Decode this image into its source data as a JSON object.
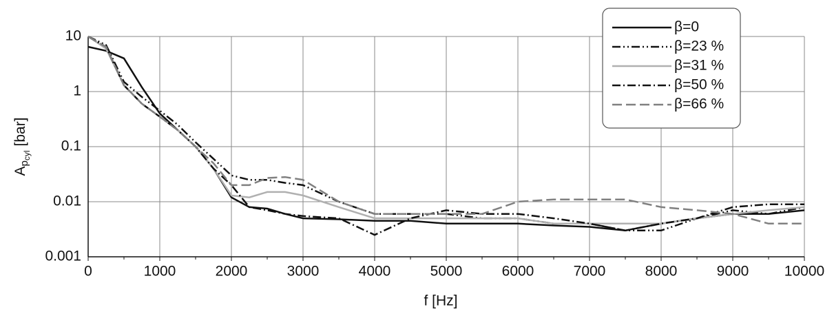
{
  "chart_data": {
    "type": "line",
    "x_label": "f [Hz]",
    "y_label": "A",
    "y_label_sub": "p",
    "y_label_subsub": "cyl",
    "y_label_unit": "[bar]",
    "y_scale": "log",
    "grid": true,
    "legend_position": "upper right",
    "xlim": [
      0,
      10000
    ],
    "xticks": [
      0,
      1000,
      2000,
      3000,
      4000,
      5000,
      6000,
      7000,
      8000,
      9000,
      10000
    ],
    "x_minor_ticks": [
      500,
      1500,
      2500,
      3500,
      4500,
      5500,
      6500,
      7500,
      8500,
      9500
    ],
    "ylim": [
      0.001,
      10
    ],
    "yticks": [
      0.001,
      0.01,
      0.1,
      1,
      10
    ],
    "x": [
      0,
      250,
      500,
      750,
      1000,
      1250,
      1500,
      1750,
      2000,
      2250,
      2500,
      2750,
      3000,
      3500,
      4000,
      4500,
      5000,
      5500,
      6000,
      6500,
      7000,
      7500,
      8000,
      8500,
      9000,
      9500,
      10000
    ],
    "series": [
      {
        "name": "β=0",
        "color": "#111111",
        "dash": "solid",
        "values": [
          6.5,
          5.5,
          4,
          1.2,
          0.4,
          0.2,
          0.1,
          0.04,
          0.012,
          0.008,
          0.0075,
          0.006,
          0.005,
          0.0048,
          0.0045,
          0.0045,
          0.004,
          0.004,
          0.004,
          0.0037,
          0.0035,
          0.003,
          0.004,
          0.005,
          0.006,
          0.006,
          0.007
        ]
      },
      {
        "name": "β=23 %",
        "color": "#111111",
        "dash": "dash-dot-dot",
        "values": [
          10,
          7,
          1.5,
          0.8,
          0.45,
          0.25,
          0.12,
          0.06,
          0.03,
          0.025,
          0.025,
          0.022,
          0.02,
          0.01,
          0.006,
          0.006,
          0.006,
          0.005,
          0.005,
          0.004,
          0.004,
          0.003,
          0.003,
          0.005,
          0.007,
          0.006,
          0.008
        ]
      },
      {
        "name": "β=31 %",
        "color": "#b0b0b0",
        "dash": "solid",
        "values": [
          10,
          6,
          1.3,
          0.6,
          0.35,
          0.2,
          0.1,
          0.04,
          0.013,
          0.012,
          0.015,
          0.015,
          0.013,
          0.008,
          0.005,
          0.005,
          0.005,
          0.005,
          0.005,
          0.004,
          0.004,
          0.004,
          0.004,
          0.005,
          0.006,
          0.007,
          0.008
        ]
      },
      {
        "name": "β=50 %",
        "color": "#111111",
        "dash": "dash-dot",
        "values": [
          10,
          6.5,
          1.3,
          0.6,
          0.35,
          0.2,
          0.1,
          0.04,
          0.02,
          0.008,
          0.007,
          0.006,
          0.0055,
          0.005,
          0.0025,
          0.005,
          0.007,
          0.006,
          0.006,
          0.005,
          0.004,
          0.003,
          0.004,
          0.005,
          0.008,
          0.009,
          0.009
        ]
      },
      {
        "name": "β=66 %",
        "color": "#808080",
        "dash": "dashed",
        "values": [
          10,
          6.5,
          1.3,
          0.6,
          0.35,
          0.2,
          0.1,
          0.05,
          0.02,
          0.02,
          0.027,
          0.028,
          0.025,
          0.01,
          0.006,
          0.006,
          0.006,
          0.006,
          0.01,
          0.011,
          0.011,
          0.011,
          0.008,
          0.007,
          0.006,
          0.004,
          0.004
        ]
      }
    ]
  }
}
